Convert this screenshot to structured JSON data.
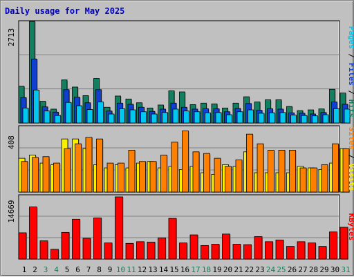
{
  "title": "Daily usage for May 2025",
  "colors": {
    "hits": "#128060",
    "files": "#1040d0",
    "pages": "#00c8f0",
    "visits": "#f8f000",
    "sites": "#ff8000",
    "kbytes": "#ff0000",
    "weekday_label": "#000000",
    "weekend_label": "#128060"
  },
  "chart_data": [
    {
      "type": "bar",
      "name": "hits-files-pages",
      "ymax": 2713,
      "ymax_label": "2713",
      "ylim": [
        0,
        2713
      ],
      "legend": {
        "text": "Pages / Files / Hits",
        "parts": [
          "Pages",
          "/",
          "Files",
          "/",
          "Hits"
        ]
      },
      "categories": [
        "1",
        "2",
        "3",
        "4",
        "5",
        "6",
        "7",
        "8",
        "9",
        "10",
        "11",
        "12",
        "13",
        "14",
        "15",
        "16",
        "17",
        "18",
        "19",
        "20",
        "21",
        "22",
        "23",
        "24",
        "25",
        "26",
        "27",
        "28",
        "29",
        "30",
        "31"
      ],
      "series": [
        {
          "name": "Hits",
          "values": [
            980,
            2713,
            580,
            370,
            1150,
            960,
            730,
            1190,
            420,
            720,
            640,
            540,
            400,
            480,
            860,
            830,
            490,
            530,
            510,
            400,
            530,
            700,
            560,
            620,
            620,
            440,
            330,
            350,
            375,
            900,
            800
          ]
        },
        {
          "name": "Files",
          "values": [
            680,
            1710,
            430,
            290,
            890,
            690,
            540,
            890,
            320,
            530,
            500,
            420,
            310,
            370,
            530,
            420,
            370,
            380,
            380,
            300,
            390,
            520,
            340,
            380,
            370,
            270,
            260,
            240,
            280,
            560,
            500
          ]
        },
        {
          "name": "Pages",
          "values": [
            400,
            880,
            320,
            200,
            550,
            460,
            360,
            560,
            240,
            380,
            350,
            300,
            240,
            280,
            370,
            320,
            300,
            270,
            280,
            220,
            300,
            350,
            260,
            270,
            280,
            210,
            200,
            190,
            220,
            380,
            370
          ]
        }
      ]
    },
    {
      "type": "bar",
      "name": "visits-sites",
      "ymax": 408,
      "ymax_label": "408",
      "ylim": [
        0,
        408
      ],
      "legend": {
        "text": "Sites / Visits",
        "parts": [
          "Sites",
          "/",
          "Visits"
        ]
      },
      "categories": [
        "1",
        "2",
        "3",
        "4",
        "5",
        "6",
        "7",
        "8",
        "9",
        "10",
        "11",
        "12",
        "13",
        "14",
        "15",
        "16",
        "17",
        "18",
        "19",
        "20",
        "21",
        "22",
        "23",
        "24",
        "25",
        "26",
        "27",
        "28",
        "29",
        "30",
        "31"
      ],
      "series": [
        {
          "name": "Visits",
          "values": [
            210,
            230,
            180,
            170,
            330,
            330,
            270,
            170,
            150,
            170,
            150,
            180,
            190,
            150,
            160,
            140,
            160,
            120,
            110,
            170,
            160,
            250,
            120,
            120,
            120,
            120,
            160,
            150,
            140,
            180,
            270
          ]
        },
        {
          "name": "Sites",
          "values": [
            190,
            215,
            220,
            180,
            270,
            300,
            340,
            330,
            180,
            180,
            260,
            190,
            190,
            230,
            310,
            380,
            250,
            240,
            210,
            160,
            200,
            360,
            300,
            260,
            260,
            260,
            150,
            150,
            170,
            300,
            270
          ]
        }
      ]
    },
    {
      "type": "bar",
      "name": "kbytes",
      "ymax": 14669,
      "ymax_label": "14669",
      "ylim": [
        0,
        14669
      ],
      "legend": {
        "text": "KBytes",
        "parts": [
          "KBytes"
        ]
      },
      "categories": [
        "1",
        "2",
        "3",
        "4",
        "5",
        "6",
        "7",
        "8",
        "9",
        "10",
        "11",
        "12",
        "13",
        "14",
        "15",
        "16",
        "17",
        "18",
        "19",
        "20",
        "21",
        "22",
        "23",
        "24",
        "25",
        "26",
        "27",
        "28",
        "29",
        "30",
        "31"
      ],
      "series": [
        {
          "name": "KBytes",
          "values": [
            6200,
            12300,
            4300,
            2300,
            6300,
            9400,
            4900,
            9700,
            3800,
            14669,
            3700,
            4100,
            4000,
            5000,
            9600,
            3800,
            5700,
            3200,
            3500,
            5900,
            3500,
            3400,
            5300,
            4100,
            4500,
            3000,
            4100,
            3800,
            3000,
            6400,
            7500
          ]
        }
      ]
    }
  ],
  "weekend_days": [
    3,
    4,
    10,
    11,
    17,
    18,
    24,
    25,
    31
  ]
}
